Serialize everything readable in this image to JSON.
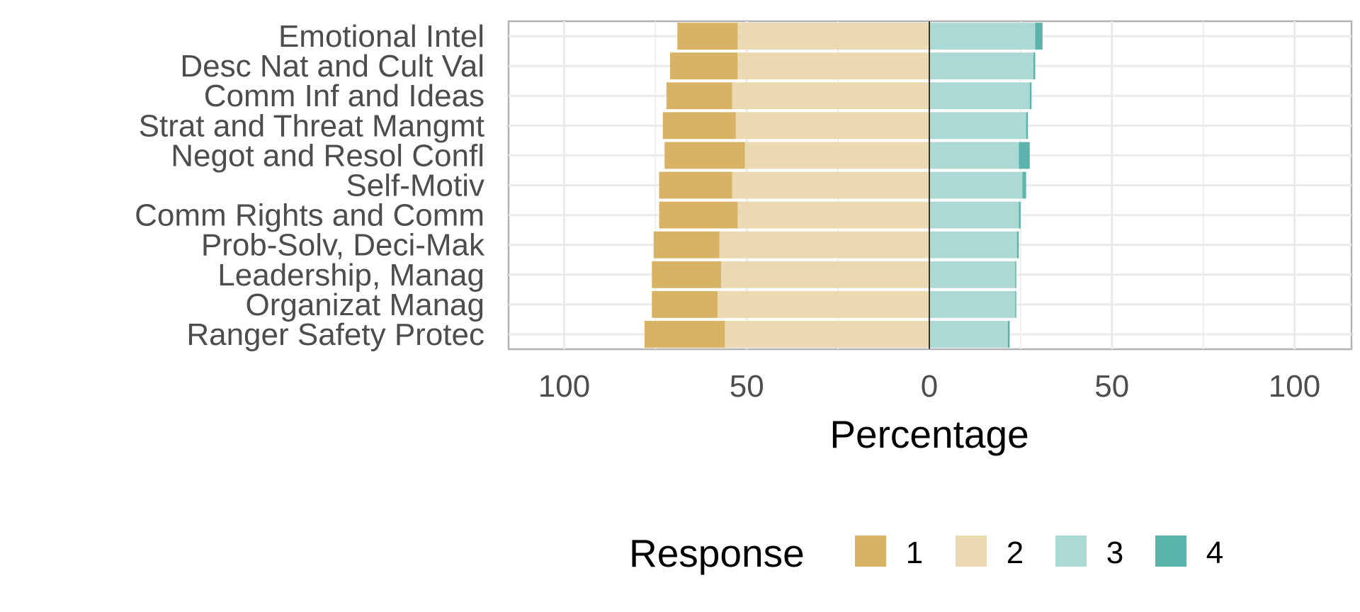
{
  "chart_data": {
    "type": "bar",
    "orientation": "horizontal",
    "stacking": "diverging",
    "xlabel": "Percentage",
    "x_ticks": [
      {
        "value": -100,
        "label": "100"
      },
      {
        "value": -50,
        "label": "50"
      },
      {
        "value": 0,
        "label": "0"
      },
      {
        "value": 50,
        "label": "50"
      },
      {
        "value": 100,
        "label": "100"
      }
    ],
    "xlim": [
      -115,
      115
    ],
    "grid": true,
    "legend": {
      "title": "Response",
      "position": "bottom"
    },
    "categories": [
      "Emotional Intel",
      "Desc Nat and Cult Val",
      "Comm Inf and Ideas",
      "Strat and Threat Mangmt",
      "Negot and Resol Confl",
      "Self-Motiv",
      "Comm Rights and Comm",
      "Prob-Solv, Deci-Mak",
      "Leadership, Manag",
      "Organizat Manag",
      "Ranger Safety Protec"
    ],
    "series": [
      {
        "name": "1",
        "color": "#D8B365",
        "side": "negative",
        "values": [
          16.5,
          18.5,
          18,
          20,
          22,
          20,
          21.5,
          18,
          19,
          18,
          22
        ]
      },
      {
        "name": "2",
        "color": "#EBD9B2",
        "side": "negative",
        "values": [
          52.5,
          52.5,
          54,
          53,
          50.5,
          54,
          52.5,
          57.5,
          57,
          58,
          56
        ]
      },
      {
        "name": "3",
        "color": "#ADD9D5",
        "side": "positive",
        "values": [
          29,
          28.5,
          27.5,
          26.5,
          24.5,
          25.5,
          24.5,
          24,
          23.5,
          23.5,
          21.5
        ]
      },
      {
        "name": "4",
        "color": "#5AB4AC",
        "side": "positive",
        "values": [
          2,
          0.5,
          0.5,
          0.5,
          3,
          1,
          0.5,
          0.5,
          0.3,
          0.3,
          0.5
        ]
      }
    ]
  }
}
